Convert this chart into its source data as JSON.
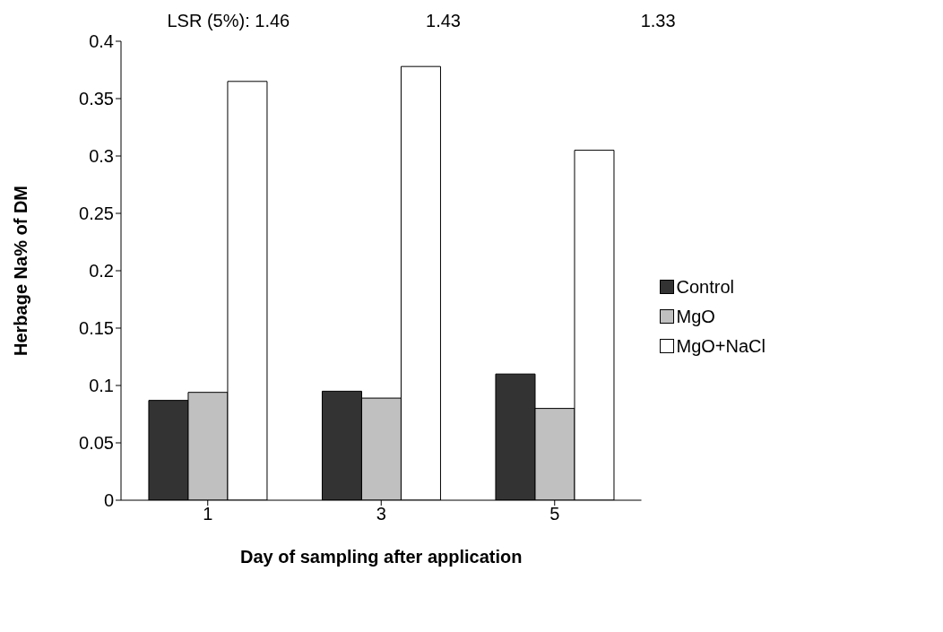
{
  "chart_data": {
    "type": "bar",
    "xlabel": "Day of sampling after application",
    "ylabel": "Herbage Na% of DM",
    "categories": [
      "1",
      "3",
      "5"
    ],
    "series": [
      {
        "name": "Control",
        "color": "#333333",
        "values": [
          0.087,
          0.095,
          0.11
        ]
      },
      {
        "name": "MgO",
        "color": "#c0c0c0",
        "values": [
          0.094,
          0.089,
          0.08
        ]
      },
      {
        "name": "MgO+NaCl",
        "color": "#ffffff",
        "values": [
          0.365,
          0.378,
          0.305
        ]
      }
    ],
    "ylim": [
      0,
      0.4
    ],
    "yticks": [
      0,
      0.05,
      0.1,
      0.15,
      0.2,
      0.25,
      0.3,
      0.35,
      0.4
    ],
    "grid": false,
    "legend": "right",
    "annotations": [
      "LSR (5%): 1.46",
      "1.43",
      "1.33"
    ]
  }
}
